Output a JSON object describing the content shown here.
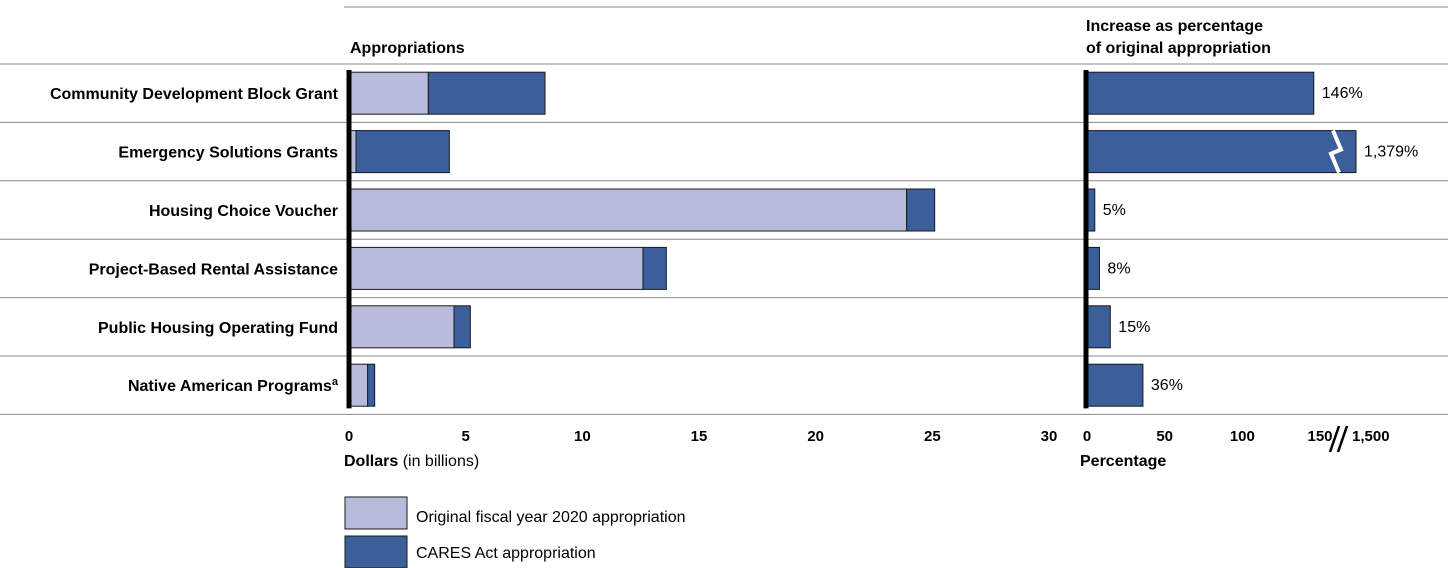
{
  "left_panel": {
    "header": "Appropriations",
    "axis_label_bold": "Dollars",
    "axis_label_rest": " (in billions)",
    "ticks": [
      "0",
      "5",
      "10",
      "15",
      "20",
      "25",
      "30"
    ]
  },
  "right_panel": {
    "header_line1": "Increase as percentage",
    "header_line2": "of original appropriation",
    "axis_label": "Percentage",
    "ticks": [
      "0",
      "50",
      "100",
      "150",
      "1,500"
    ]
  },
  "legend": {
    "original_label": "Original fiscal year 2020 appropriation",
    "cares_label": "CARES Act appropriation"
  },
  "colors": {
    "original": "#b8bbdb",
    "cares": "#3a5f9a",
    "outline": "#1a1a1a",
    "grid": "#888888"
  },
  "chart_data": [
    {
      "type": "bar",
      "stacked": true,
      "orientation": "horizontal",
      "title": "Appropriations",
      "xlabel": "Dollars (in billions)",
      "xlim": [
        0,
        30
      ],
      "categories": [
        "Community Development Block Grant",
        "Emergency Solutions Grants",
        "Housing Choice Voucher",
        "Project-Based Rental Assistance",
        "Public Housing Operating Fund",
        "Native American Programs"
      ],
      "category_superscripts": [
        "",
        "",
        "",
        "",
        "",
        "a"
      ],
      "series": [
        {
          "name": "Original fiscal year 2020 appropriation",
          "values": [
            3.4,
            0.3,
            23.9,
            12.6,
            4.5,
            0.8
          ]
        },
        {
          "name": "CARES Act appropriation",
          "values": [
            5.0,
            4.0,
            1.2,
            1.0,
            0.7,
            0.3
          ]
        }
      ]
    },
    {
      "type": "bar",
      "orientation": "horizontal",
      "title": "Increase as percentage of original appropriation",
      "xlabel": "Percentage",
      "xlim": [
        0,
        150
      ],
      "axis_break_after": 150,
      "axis_break_tick": 1500,
      "categories": [
        "Community Development Block Grant",
        "Emergency Solutions Grants",
        "Housing Choice Voucher",
        "Project-Based Rental Assistance",
        "Public Housing Operating Fund",
        "Native American Programs"
      ],
      "values": [
        146,
        1379,
        5,
        8,
        15,
        36
      ],
      "value_labels": [
        "146%",
        "1,379%",
        "5%",
        "8%",
        "15%",
        "36%"
      ],
      "broken_bars": [
        false,
        true,
        false,
        false,
        false,
        false
      ]
    }
  ]
}
